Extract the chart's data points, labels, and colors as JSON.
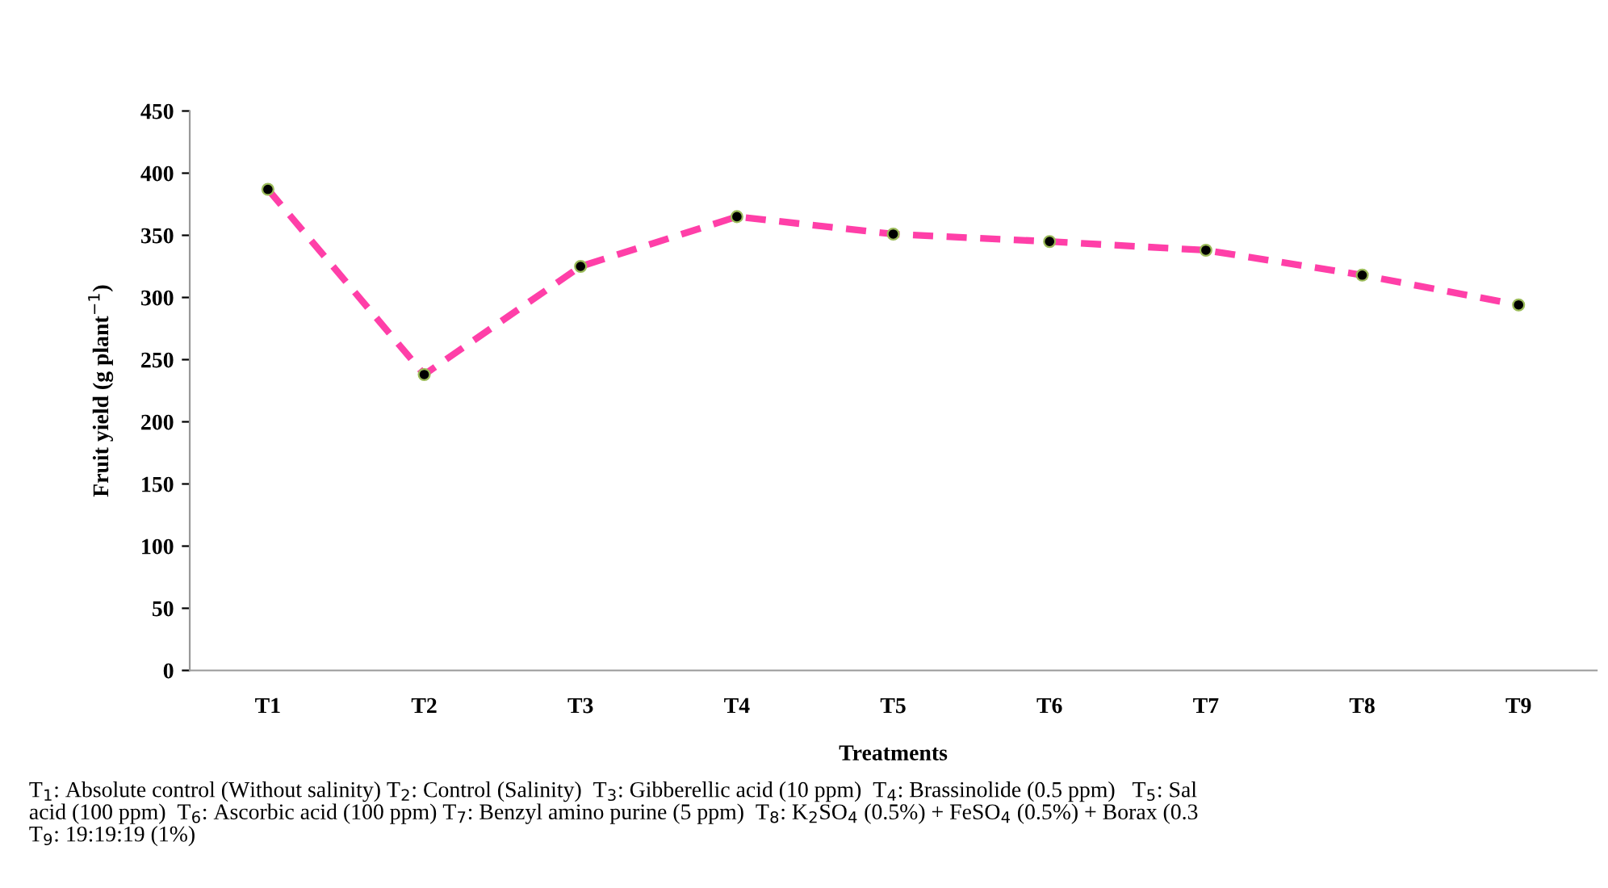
{
  "chart_data": {
    "type": "line",
    "xlabel": "Treatments",
    "ylabel": "Fruit yield (g plant$^{−1}$)",
    "categories": [
      "T1",
      "T2",
      "T3",
      "T4",
      "T5",
      "T6",
      "T7",
      "T8",
      "T9"
    ],
    "series": [
      {
        "color": "#ff3fa8",
        "values": [
          387,
          238,
          325,
          365,
          351,
          345,
          338,
          318,
          294
        ]
      }
    ],
    "ylim": [
      0,
      450
    ],
    "yticks": [
      0,
      50,
      100,
      150,
      200,
      250,
      300,
      350,
      400,
      450
    ],
    "marker": "circle",
    "line_style": "dashed",
    "grid": false,
    "annotations": [
      "T$_{1}$: Absolute control (Without salinity) T$_{2}$: Control (Salinity)  T$_{3}$: Gibberellic acid (10 ppm)  T$_{4}$: Brassinolide (0.5 ppm)   T$_{5}$: Sal\nacid (100 ppm)  T$_{6}$: Ascorbic acid (100 ppm) T$_{7}$: Benzyl amino purine (5 ppm)  T$_{8}$: K$_{2}$SO$_{4}$ (0.5%) + FeSO$_{4}$ (0.5%) + Borax (0.3\nT$_{9}$: 19:19:19 (1%)"
    ]
  }
}
